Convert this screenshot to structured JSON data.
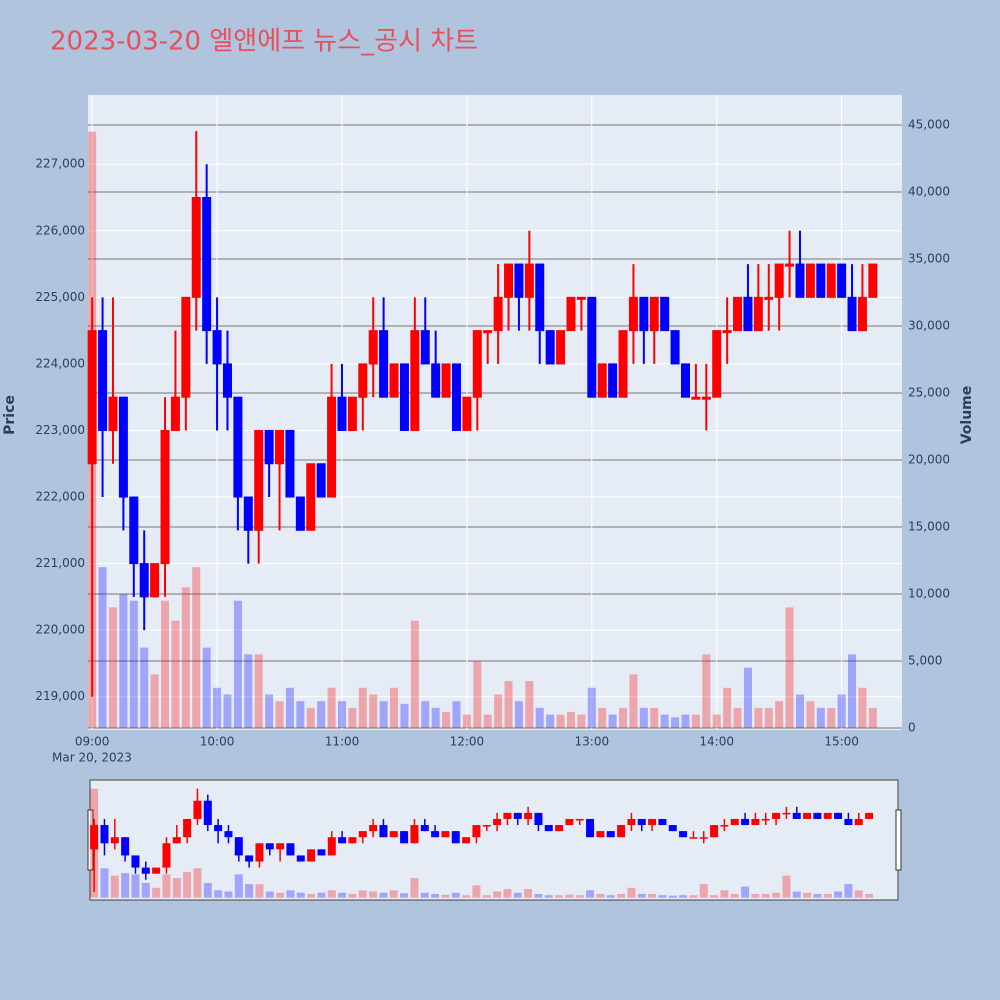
{
  "chart_data": {
    "type": "candlestick",
    "title": "2023-03-20 엘앤에프 뉴스_공시 차트",
    "ylabel": "Price",
    "y2label": "Volume",
    "increasing_color": "#ff0000",
    "decreasing_color": "#0000ff",
    "x": [
      "09:00",
      "09:05",
      "09:10",
      "09:15",
      "09:20",
      "09:25",
      "09:30",
      "09:35",
      "09:40",
      "09:45",
      "09:50",
      "09:55",
      "10:00",
      "10:05",
      "10:10",
      "10:15",
      "10:20",
      "10:25",
      "10:30",
      "10:35",
      "10:40",
      "10:45",
      "10:50",
      "10:55",
      "11:00",
      "11:05",
      "11:10",
      "11:15",
      "11:20",
      "11:25",
      "11:30",
      "11:35",
      "11:40",
      "11:45",
      "11:50",
      "11:55",
      "12:00",
      "12:05",
      "12:10",
      "12:15",
      "12:20",
      "12:25",
      "12:30",
      "12:35",
      "12:40",
      "12:45",
      "12:50",
      "12:55",
      "13:00",
      "13:05",
      "13:10",
      "13:15",
      "13:20",
      "13:25",
      "13:30",
      "13:35",
      "13:40",
      "13:45",
      "13:50",
      "13:55",
      "14:00",
      "14:05",
      "14:10",
      "14:15",
      "14:20",
      "14:25",
      "14:30",
      "14:35",
      "14:40",
      "14:45",
      "14:50",
      "14:55",
      "15:00",
      "15:05",
      "15:10",
      "15:15"
    ],
    "open": [
      222500,
      224500,
      223000,
      223500,
      222000,
      221000,
      220500,
      221000,
      223000,
      223500,
      225000,
      226500,
      224500,
      224000,
      223500,
      222000,
      221500,
      223000,
      222500,
      223000,
      222000,
      221500,
      222500,
      222000,
      223500,
      223000,
      223500,
      224000,
      224500,
      223500,
      224000,
      223000,
      224500,
      224000,
      223500,
      224000,
      223000,
      223500,
      224500,
      224500,
      225000,
      225500,
      225000,
      225500,
      224500,
      224000,
      224500,
      225000,
      225000,
      223500,
      224000,
      223500,
      224500,
      225000,
      224500,
      225000,
      224500,
      224000,
      223500,
      223500,
      223500,
      224500,
      224500,
      225000,
      224500,
      225000,
      225000,
      225500,
      225500,
      225000,
      225500,
      225000,
      225500,
      225000,
      224500,
      225000
    ],
    "high": [
      225000,
      225000,
      225000,
      223500,
      222000,
      221500,
      221000,
      223500,
      224500,
      225000,
      227500,
      227000,
      225000,
      224500,
      223500,
      222000,
      223000,
      223000,
      223000,
      223000,
      222000,
      222500,
      222500,
      224000,
      224000,
      223500,
      224000,
      225000,
      225000,
      224000,
      224000,
      225000,
      225000,
      224500,
      224000,
      224000,
      223500,
      224500,
      224500,
      225500,
      225500,
      225500,
      226000,
      225500,
      224500,
      224500,
      225000,
      225000,
      225000,
      224000,
      224000,
      224500,
      225500,
      225000,
      225000,
      225000,
      224500,
      224000,
      224000,
      224000,
      224500,
      225000,
      225000,
      225500,
      225500,
      225500,
      225500,
      226000,
      226000,
      225500,
      225500,
      225500,
      225500,
      225500,
      225500,
      225500
    ],
    "low": [
      219000,
      222000,
      222500,
      221500,
      220500,
      220000,
      220500,
      220500,
      223000,
      223000,
      224500,
      224000,
      223000,
      223000,
      221500,
      221000,
      221000,
      222000,
      221500,
      222000,
      221500,
      221500,
      222000,
      222000,
      223000,
      223000,
      223000,
      223500,
      223500,
      223500,
      223000,
      223000,
      224000,
      223500,
      223500,
      223000,
      223000,
      223000,
      224000,
      224000,
      224500,
      224500,
      224500,
      224000,
      224000,
      224000,
      224500,
      224500,
      223500,
      223500,
      223500,
      223500,
      224000,
      224000,
      224000,
      224500,
      224000,
      223500,
      223500,
      223000,
      223500,
      224000,
      224500,
      224500,
      224500,
      224500,
      224500,
      225000,
      225000,
      225000,
      225000,
      225000,
      225000,
      224500,
      224500,
      225000
    ],
    "close": [
      224500,
      223000,
      223500,
      222000,
      221000,
      220500,
      221000,
      223000,
      223500,
      225000,
      226500,
      224500,
      224000,
      223500,
      222000,
      221500,
      223000,
      222500,
      223000,
      222000,
      221500,
      222500,
      222000,
      223500,
      223000,
      223500,
      224000,
      224500,
      223500,
      224000,
      223000,
      224500,
      224000,
      223500,
      224000,
      223000,
      223500,
      224500,
      224500,
      225000,
      225500,
      225000,
      225500,
      224500,
      224000,
      224500,
      225000,
      225000,
      223500,
      224000,
      223500,
      224500,
      225000,
      224500,
      225000,
      224500,
      224000,
      223500,
      223500,
      223500,
      224500,
      224500,
      225000,
      224500,
      225000,
      225000,
      225500,
      225500,
      225000,
      225500,
      225000,
      225500,
      225000,
      224500,
      225000,
      225500
    ],
    "volume": [
      44500,
      12000,
      9000,
      10000,
      9500,
      6000,
      4000,
      9500,
      8000,
      10500,
      12000,
      6000,
      3000,
      2500,
      9500,
      5500,
      5500,
      2500,
      2000,
      3000,
      2000,
      1500,
      2000,
      3000,
      2000,
      1500,
      3000,
      2500,
      2000,
      3000,
      1800,
      8000,
      2000,
      1500,
      1200,
      2000,
      1000,
      5000,
      1000,
      2500,
      3500,
      2000,
      3500,
      1500,
      1000,
      1000,
      1200,
      1000,
      3000,
      1500,
      1000,
      1500,
      4000,
      1500,
      1500,
      1000,
      800,
      1000,
      1000,
      5500,
      1000,
      3000,
      1500,
      4500,
      1500,
      1500,
      2000,
      9000,
      2500,
      2000,
      1500,
      1500,
      2500,
      5500,
      3000,
      1500
    ],
    "xlim": [
      "08:58",
      "15:29"
    ],
    "xticks": [
      "09:00",
      "10:00",
      "11:00",
      "12:00",
      "13:00",
      "14:00",
      "15:00"
    ],
    "x_date_label": "Mar 20, 2023",
    "ylim": [
      218500,
      228040
    ],
    "yticks": [
      {
        "value": 219000,
        "label": "219,000"
      },
      {
        "value": 220000,
        "label": "220,000"
      },
      {
        "value": 221000,
        "label": "221,000"
      },
      {
        "value": 222000,
        "label": "222,000"
      },
      {
        "value": 223000,
        "label": "223,000"
      },
      {
        "value": 224000,
        "label": "224,000"
      },
      {
        "value": 225000,
        "label": "225,000"
      },
      {
        "value": 226000,
        "label": "226,000"
      },
      {
        "value": 227000,
        "label": "227,000"
      }
    ],
    "y2lim": [
      -150,
      47240
    ],
    "y2ticks": [
      0,
      {
        "value": 5000,
        "label": "5,000"
      },
      {
        "value": 10000,
        "label": "10,000"
      },
      {
        "value": 15000,
        "label": "15,000"
      },
      {
        "value": 20000,
        "label": "20,000"
      },
      {
        "value": 25000,
        "label": "25,000"
      },
      {
        "value": 30000,
        "label": "30,000"
      },
      {
        "value": 35000,
        "label": "35,000"
      },
      {
        "value": 40000,
        "label": "40,000"
      },
      {
        "value": 45000,
        "label": "45,000"
      }
    ]
  }
}
